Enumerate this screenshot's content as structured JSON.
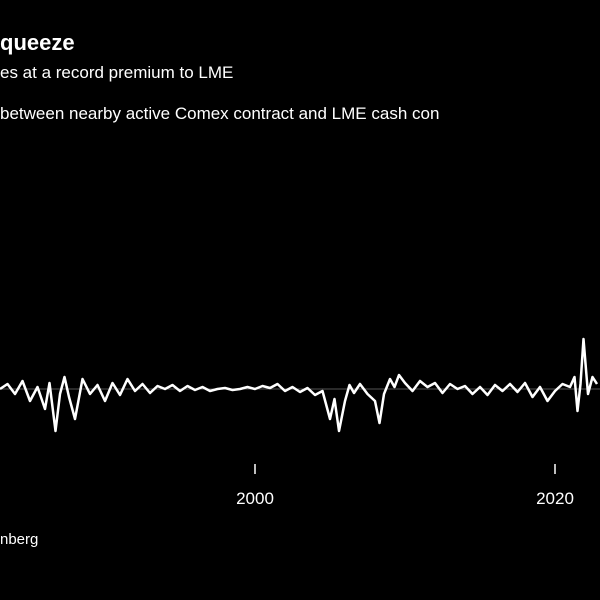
{
  "chart_data": {
    "type": "line",
    "title": "queeze",
    "subtitle": "es at a record premium to LME",
    "ylabel": " between nearby active Comex contract and LME cash con",
    "source": "nberg",
    "xlim": [
      1983,
      2023
    ],
    "ylim": [
      -1,
      1
    ],
    "x_ticks": [
      2000,
      2020
    ],
    "x_tick_labels": [
      "2000",
      "2020"
    ],
    "baseline": 0,
    "series": [
      {
        "line_color": "#ffffff",
        "x": [
          1983.0,
          1983.5,
          1984.0,
          1984.5,
          1985.0,
          1985.5,
          1986.0,
          1986.3,
          1986.7,
          1987.0,
          1987.3,
          1987.6,
          1988.0,
          1988.5,
          1989.0,
          1989.5,
          1990.0,
          1990.5,
          1991.0,
          1991.5,
          1992.0,
          1992.5,
          1993.0,
          1993.5,
          1994.0,
          1994.5,
          1995.0,
          1995.5,
          1996.0,
          1996.5,
          1997.0,
          1997.5,
          1998.0,
          1998.5,
          1999.0,
          1999.5,
          2000.0,
          2000.5,
          2001.0,
          2001.5,
          2002.0,
          2002.5,
          2003.0,
          2003.5,
          2004.0,
          2004.5,
          2005.0,
          2005.3,
          2005.6,
          2006.0,
          2006.3,
          2006.6,
          2007.0,
          2007.5,
          2008.0,
          2008.3,
          2008.6,
          2009.0,
          2009.3,
          2009.6,
          2010.0,
          2010.5,
          2011.0,
          2011.5,
          2012.0,
          2012.5,
          2013.0,
          2013.5,
          2014.0,
          2014.5,
          2015.0,
          2015.5,
          2016.0,
          2016.5,
          2017.0,
          2017.5,
          2018.0,
          2018.5,
          2019.0,
          2019.5,
          2020.0,
          2020.5,
          2021.0,
          2021.3,
          2021.5,
          2021.7,
          2021.9,
          2022.2,
          2022.5,
          2022.8
        ],
        "y": [
          0.0,
          0.05,
          -0.05,
          0.08,
          -0.12,
          0.02,
          -0.2,
          0.06,
          -0.42,
          -0.05,
          0.12,
          -0.08,
          -0.3,
          0.1,
          -0.05,
          0.04,
          -0.12,
          0.06,
          -0.06,
          0.1,
          -0.02,
          0.05,
          -0.04,
          0.03,
          0.0,
          0.04,
          -0.02,
          0.03,
          -0.01,
          0.02,
          -0.02,
          0.0,
          0.01,
          -0.01,
          0.0,
          0.02,
          0.0,
          0.03,
          0.01,
          0.05,
          -0.02,
          0.02,
          -0.03,
          0.01,
          -0.06,
          -0.02,
          -0.3,
          -0.1,
          -0.42,
          -0.12,
          0.04,
          -0.04,
          0.05,
          -0.05,
          -0.12,
          -0.34,
          -0.05,
          0.1,
          0.02,
          0.14,
          0.06,
          -0.02,
          0.08,
          0.02,
          0.06,
          -0.04,
          0.05,
          0.0,
          0.03,
          -0.05,
          0.02,
          -0.06,
          0.04,
          -0.02,
          0.05,
          -0.03,
          0.06,
          -0.08,
          0.02,
          -0.12,
          -0.02,
          0.05,
          0.02,
          0.12,
          -0.22,
          0.05,
          0.5,
          -0.05,
          0.12,
          0.05
        ]
      }
    ]
  }
}
